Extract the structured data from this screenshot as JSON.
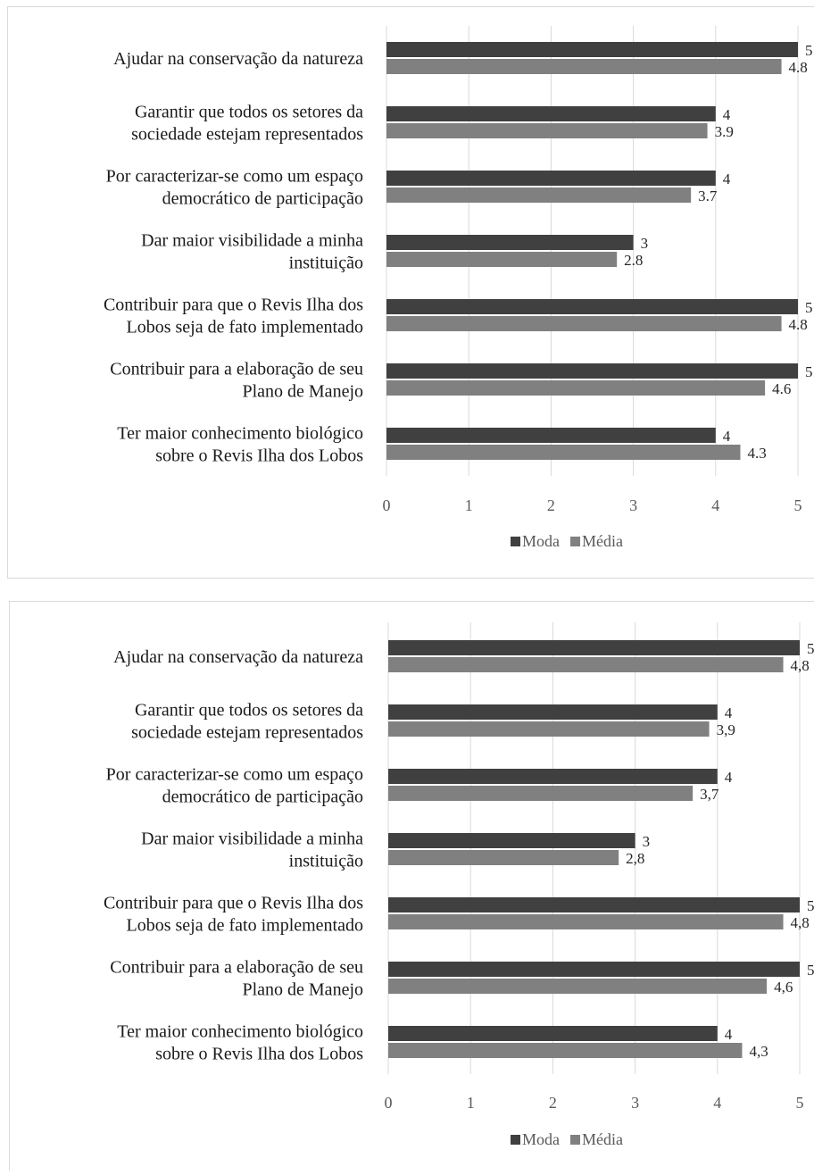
{
  "chart_data": [
    {
      "type": "bar",
      "orientation": "horizontal",
      "categories": [
        "Ajudar na conservação da natureza",
        "Garantir que todos os setores da\nsociedade estejam representados",
        "Por caracterizar-se como um espaço\ndemocrático de participação",
        "Dar maior visibilidade a minha\ninstituição",
        "Contribuir para que o Revis Ilha dos\nLobos seja de fato implementado",
        "Contribuir para a elaboração de seu\nPlano de Manejo",
        "Ter maior conhecimento biológico\nsobre o Revis Ilha dos Lobos"
      ],
      "series": [
        {
          "name": "Moda",
          "color": "#404040",
          "values": [
            5,
            4,
            4,
            3,
            5,
            5,
            4
          ]
        },
        {
          "name": "Média",
          "color": "#808080",
          "values": [
            4.8,
            3.9,
            3.7,
            2.8,
            4.8,
            4.6,
            4.3
          ]
        }
      ],
      "xlim": [
        0,
        5
      ],
      "xticks": [
        0,
        1,
        2,
        3,
        4,
        5
      ],
      "grid": true,
      "legend": "bottom"
    },
    {
      "type": "bar",
      "orientation": "horizontal",
      "categories": [
        "Ajudar na conservação da natureza",
        "Garantir que todos os setores da\nsociedade estejam representados",
        "Por caracterizar-se como um espaço\ndemocrático de participação",
        "Dar maior visibilidade a minha\ninstituição",
        "Contribuir para que o Revis Ilha dos\nLobos seja de fato implementado",
        "Contribuir para a elaboração de seu\nPlano de Manejo",
        "Ter maior conhecimento biológico\nsobre o Revis Ilha dos Lobos"
      ],
      "series": [
        {
          "name": "Moda",
          "color": "#404040",
          "values": [
            5,
            4,
            4,
            3,
            5,
            5,
            4
          ]
        },
        {
          "name": "Média",
          "color": "#808080",
          "values": [
            4.8,
            3.9,
            3.7,
            2.8,
            4.8,
            4.6,
            4.3
          ],
          "value_labels": [
            "4,8",
            "3,9",
            "3,7",
            "2,8",
            "4,8",
            "4,6",
            "4,3"
          ]
        }
      ],
      "xlim": [
        0,
        5
      ],
      "xticks": [
        0,
        1,
        2,
        3,
        4,
        5
      ],
      "grid": true,
      "legend": "bottom"
    }
  ]
}
